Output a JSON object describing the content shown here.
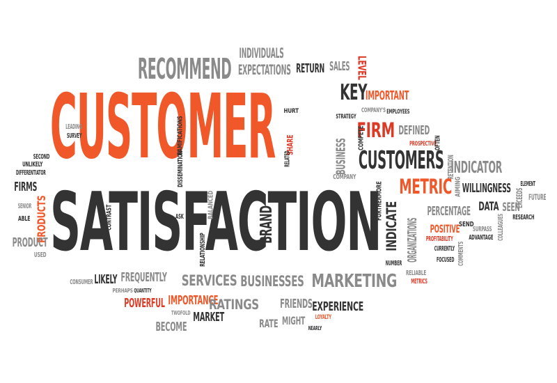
{
  "words": [
    {
      "text": "CUSTOMER",
      "color": "orange",
      "angle": 0
    },
    {
      "text": "SATISFACTION",
      "color": "dark",
      "angle": 0
    },
    {
      "text": "RECOMMEND",
      "color": "gray",
      "angle": 0
    },
    {
      "text": "INDIVIDUALS",
      "color": "gray",
      "angle": 0
    },
    {
      "text": "EXPECTATIONS",
      "color": "gray",
      "angle": 0
    },
    {
      "text": "RETURN",
      "color": "dark",
      "angle": 0
    },
    {
      "text": "SALES",
      "color": "gray",
      "angle": 0
    },
    {
      "text": "LEVEL",
      "color": "red",
      "angle": 90
    },
    {
      "text": "KEY",
      "color": "dark",
      "angle": 0
    },
    {
      "text": "IMPORTANT",
      "color": "orange",
      "angle": 0
    },
    {
      "text": "COMPANY'S",
      "color": "gray",
      "angle": 0
    },
    {
      "text": "EMPLOYEES",
      "color": "dark",
      "angle": 0
    },
    {
      "text": "HURT",
      "color": "dark",
      "angle": 0
    },
    {
      "text": "STRATEGY",
      "color": "dark",
      "angle": 0
    },
    {
      "text": "FIRM",
      "color": "red",
      "angle": 0
    },
    {
      "text": "DEFINED",
      "color": "gray",
      "angle": 0
    },
    {
      "text": "PROSPECTIVE",
      "color": "red",
      "angle": 0
    },
    {
      "text": "OFTEN",
      "color": "dark",
      "angle": -90
    },
    {
      "text": "CUSTOMERS",
      "color": "dark",
      "angle": 0
    },
    {
      "text": "INDICATOR",
      "color": "gray",
      "angle": 0
    },
    {
      "text": "RETENTION",
      "color": "gray",
      "angle": -90
    },
    {
      "text": "AIMING",
      "color": "gray",
      "angle": -90
    },
    {
      "text": "METRIC",
      "color": "orange",
      "angle": 0
    },
    {
      "text": "WILLINGNESS",
      "color": "dark",
      "angle": 0
    },
    {
      "text": "ELEMENT",
      "color": "dark",
      "angle": 0
    },
    {
      "text": "EXCEEDS",
      "color": "gray",
      "angle": -90
    },
    {
      "text": "FUTURE",
      "color": "gray",
      "angle": 0
    },
    {
      "text": "PERCENTAGE",
      "color": "gray",
      "angle": 0
    },
    {
      "text": "DATA",
      "color": "dark",
      "angle": 0
    },
    {
      "text": "SEEN",
      "color": "gray",
      "angle": 0
    },
    {
      "text": "RESEARCH",
      "color": "dark",
      "angle": 0
    },
    {
      "text": "POSITIVE",
      "color": "orange",
      "angle": 0
    },
    {
      "text": "SEND",
      "color": "dark",
      "angle": 0
    },
    {
      "text": "SURPASS",
      "color": "gray",
      "angle": 0
    },
    {
      "text": "ADVANTAGE",
      "color": "dark",
      "angle": 0
    },
    {
      "text": "COLLEAGUES",
      "color": "gray",
      "angle": -90
    },
    {
      "text": "PROFITABILITY",
      "color": "red",
      "angle": 0
    },
    {
      "text": "CURRENTLY",
      "color": "dark",
      "angle": 0
    },
    {
      "text": "FOCUSED",
      "color": "dark",
      "angle": 0
    },
    {
      "text": "COMMENTS",
      "color": "gray",
      "angle": -90
    },
    {
      "text": "INDICATE",
      "color": "dark",
      "angle": -90
    },
    {
      "text": "ORGANIZATIONS",
      "color": "gray",
      "angle": -90
    },
    {
      "text": "FURTHERMORE",
      "color": "dark",
      "angle": -90
    },
    {
      "text": "NUMBER",
      "color": "dark",
      "angle": 0
    },
    {
      "text": "RELIABLE",
      "color": "gray",
      "angle": 0
    },
    {
      "text": "METRICS",
      "color": "red",
      "angle": 0
    },
    {
      "text": "BUSINESS",
      "color": "gray",
      "angle": -90
    },
    {
      "text": "COMPANY",
      "color": "gray",
      "angle": 0
    },
    {
      "text": "COMPETE",
      "color": "dark",
      "angle": -90
    },
    {
      "text": "SHARE",
      "color": "red",
      "angle": -90
    },
    {
      "text": "RELATED",
      "color": "dark",
      "angle": -90
    },
    {
      "text": "BRAND",
      "color": "dark",
      "angle": -90
    },
    {
      "text": "LEADING",
      "color": "gray",
      "angle": 0
    },
    {
      "text": "SURVEY",
      "color": "dark",
      "angle": 0
    },
    {
      "text": "RAMIFICATIONS",
      "color": "dark",
      "angle": -90
    },
    {
      "text": "DISSEMINATION",
      "color": "dark",
      "angle": -90
    },
    {
      "text": "SECOND",
      "color": "dark",
      "angle": 0
    },
    {
      "text": "UNLIKELY",
      "color": "dark",
      "angle": 0
    },
    {
      "text": "DIFFERENTIATOR",
      "color": "dark",
      "angle": 0
    },
    {
      "text": "FIRMS",
      "color": "dark",
      "angle": 0
    },
    {
      "text": "PRODUCTS",
      "color": "orange",
      "angle": -90
    },
    {
      "text": "SENIOR",
      "color": "gray",
      "angle": 0
    },
    {
      "text": "ABLE",
      "color": "dark",
      "angle": 0
    },
    {
      "text": "PRODUCT",
      "color": "gray",
      "angle": 0
    },
    {
      "text": "USED",
      "color": "gray",
      "angle": 0
    },
    {
      "text": "CONTRAST",
      "color": "dark",
      "angle": -90
    },
    {
      "text": "ASK",
      "color": "dark",
      "angle": 0
    },
    {
      "text": "BALANCED",
      "color": "gray",
      "angle": -90
    },
    {
      "text": "RELATIONSHIP",
      "color": "dark",
      "angle": -90
    },
    {
      "text": "CONSUMER",
      "color": "gray",
      "angle": 0
    },
    {
      "text": "LIKELY",
      "color": "dark",
      "angle": 0
    },
    {
      "text": "FREQUENTLY",
      "color": "gray",
      "angle": 0
    },
    {
      "text": "PERHAPS",
      "color": "gray",
      "angle": 0
    },
    {
      "text": "QUANTITY",
      "color": "dark",
      "angle": 0
    },
    {
      "text": "POWERFUL",
      "color": "red",
      "angle": 0
    },
    {
      "text": "IMPORTANCE",
      "color": "orange",
      "angle": 0
    },
    {
      "text": "TWOFOLD",
      "color": "gray",
      "angle": 0
    },
    {
      "text": "BECOME",
      "color": "gray",
      "angle": 0
    },
    {
      "text": "MARKET",
      "color": "dark",
      "angle": 0
    },
    {
      "text": "SERVICES",
      "color": "gray",
      "angle": 0
    },
    {
      "text": "BUSINESSES",
      "color": "gray",
      "angle": 0
    },
    {
      "text": "MARKETING",
      "color": "gray",
      "angle": 0
    },
    {
      "text": "RATINGS",
      "color": "gray",
      "angle": 0
    },
    {
      "text": "FRIENDS",
      "color": "gray",
      "angle": 0
    },
    {
      "text": "EXPERIENCE",
      "color": "dark",
      "angle": 0
    },
    {
      "text": "RATE",
      "color": "gray",
      "angle": 0
    },
    {
      "text": "MIGHT",
      "color": "gray",
      "angle": 0
    },
    {
      "text": "LOYALTY",
      "color": "orange",
      "angle": 0
    },
    {
      "text": "NEARLY",
      "color": "dark",
      "angle": 0
    }
  ],
  "colors": {
    "orange": "#f0582a",
    "dark": "#333333",
    "gray": "#8a8a8a",
    "red": "#dd3a25",
    "background": "#ffffff"
  }
}
